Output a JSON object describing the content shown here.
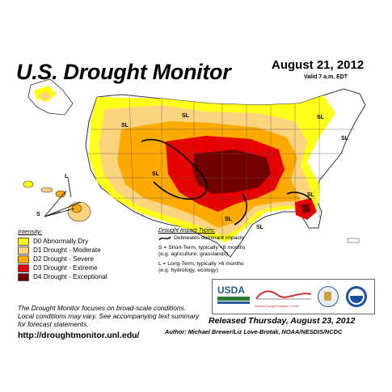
{
  "map": {
    "title": "U.S. Drought Monitor",
    "date": "August 21, 2012",
    "valid": "Valid 7 a.m. EDT",
    "released": "Released Thursday, August 23, 2012",
    "author": "Author: Michael Brewer/Liz Love-Brotak, NOAA/NESDIS/NCDC",
    "url": "http://droughtmonitor.unl.edu/",
    "note_lines": [
      "The Drought Monitor focuses on broad-scale conditions.",
      "Local conditions may vary. See accompanying text summary",
      "for forecast statements."
    ],
    "impact_labels": {
      "s": "S",
      "l": "L",
      "sl": "SL"
    }
  },
  "legend": {
    "title": "Intensity:",
    "items": [
      {
        "label": "D0 Abnormally Dry",
        "color": "#FFFF00"
      },
      {
        "label": "D1 Drought - Moderate",
        "color": "#FCD37F"
      },
      {
        "label": "D2 Drought - Severe",
        "color": "#FFAA00"
      },
      {
        "label": "D3 Drought - Extreme",
        "color": "#E60000"
      },
      {
        "label": "D4 Drought - Exceptional",
        "color": "#730000"
      }
    ]
  },
  "impact_types": {
    "title": "Drought Impact Types:",
    "lines": [
      "Delineates dominant impacts",
      "S = Short-Term, typically <6 months",
      "(e.g. agriculture, grasslands)",
      "L = Long-Term, typically >6 months",
      "(e.g. hydrology, ecology)"
    ]
  },
  "logos": {
    "usda": "USDA",
    "ndmc": "National Drought Mitigation Center"
  }
}
